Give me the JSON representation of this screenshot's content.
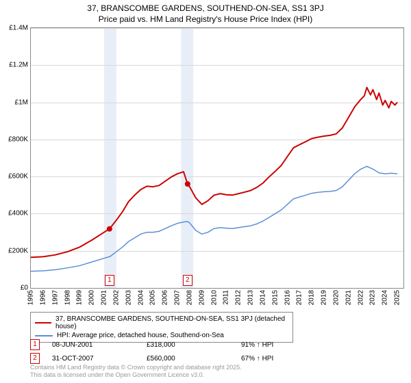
{
  "title_line1": "37, BRANSCOMBE GARDENS, SOUTHEND-ON-SEA, SS1 3PJ",
  "title_line2": "Price paid vs. HM Land Registry's House Price Index (HPI)",
  "colors": {
    "series_property": "#cc0000",
    "series_hpi": "#5b8fd6",
    "band": "#e8eef7",
    "grid": "#d8d8d8",
    "border": "#888888",
    "text": "#000000",
    "footer": "#999999"
  },
  "y_axis": {
    "min": 0,
    "max": 1400000,
    "step": 200000,
    "labels": [
      "£0",
      "£200K",
      "£400K",
      "£600K",
      "£800K",
      "£1M",
      "£1.2M",
      "£1.4M"
    ]
  },
  "x_axis": {
    "min": 1995,
    "max": 2025.5,
    "labels": [
      1995,
      1996,
      1997,
      1998,
      1999,
      2000,
      2001,
      2002,
      2003,
      2004,
      2005,
      2006,
      2007,
      2008,
      2009,
      2010,
      2011,
      2012,
      2013,
      2014,
      2015,
      2016,
      2017,
      2018,
      2019,
      2020,
      2021,
      2022,
      2023,
      2024,
      2025
    ]
  },
  "bands": [
    {
      "start": 2001.0,
      "end": 2002.0
    },
    {
      "start": 2007.3,
      "end": 2008.3
    }
  ],
  "series": {
    "hpi": {
      "label": "HPI: Average price, detached house, Southend-on-Sea",
      "line_width": 1.5,
      "points": [
        [
          1995.0,
          90000
        ],
        [
          1996.0,
          92000
        ],
        [
          1997.0,
          98000
        ],
        [
          1998.0,
          108000
        ],
        [
          1999.0,
          120000
        ],
        [
          2000.0,
          140000
        ],
        [
          2001.0,
          160000
        ],
        [
          2001.5,
          170000
        ],
        [
          2002.0,
          195000
        ],
        [
          2002.5,
          220000
        ],
        [
          2003.0,
          250000
        ],
        [
          2003.5,
          270000
        ],
        [
          2004.0,
          290000
        ],
        [
          2004.5,
          300000
        ],
        [
          2005.0,
          300000
        ],
        [
          2005.5,
          305000
        ],
        [
          2006.0,
          320000
        ],
        [
          2006.5,
          335000
        ],
        [
          2007.0,
          348000
        ],
        [
          2007.5,
          355000
        ],
        [
          2007.83,
          358000
        ],
        [
          2008.0,
          350000
        ],
        [
          2008.5,
          310000
        ],
        [
          2009.0,
          290000
        ],
        [
          2009.5,
          300000
        ],
        [
          2010.0,
          320000
        ],
        [
          2010.5,
          325000
        ],
        [
          2011.0,
          322000
        ],
        [
          2011.5,
          320000
        ],
        [
          2012.0,
          325000
        ],
        [
          2012.5,
          330000
        ],
        [
          2013.0,
          335000
        ],
        [
          2013.5,
          345000
        ],
        [
          2014.0,
          360000
        ],
        [
          2014.5,
          380000
        ],
        [
          2015.0,
          400000
        ],
        [
          2015.5,
          420000
        ],
        [
          2016.0,
          450000
        ],
        [
          2016.5,
          480000
        ],
        [
          2017.0,
          490000
        ],
        [
          2017.5,
          500000
        ],
        [
          2018.0,
          510000
        ],
        [
          2018.5,
          515000
        ],
        [
          2019.0,
          518000
        ],
        [
          2019.5,
          520000
        ],
        [
          2020.0,
          525000
        ],
        [
          2020.5,
          545000
        ],
        [
          2021.0,
          580000
        ],
        [
          2021.5,
          615000
        ],
        [
          2022.0,
          640000
        ],
        [
          2022.5,
          655000
        ],
        [
          2023.0,
          640000
        ],
        [
          2023.5,
          620000
        ],
        [
          2024.0,
          615000
        ],
        [
          2024.5,
          618000
        ],
        [
          2025.0,
          615000
        ]
      ]
    },
    "property": {
      "label": "37, BRANSCOMBE GARDENS, SOUTHEND-ON-SEA, SS1 3PJ (detached house)",
      "line_width": 2,
      "points": [
        [
          1995.0,
          165000
        ],
        [
          1996.0,
          168000
        ],
        [
          1997.0,
          178000
        ],
        [
          1998.0,
          195000
        ],
        [
          1999.0,
          220000
        ],
        [
          2000.0,
          258000
        ],
        [
          2001.0,
          300000
        ],
        [
          2001.44,
          318000
        ],
        [
          2002.0,
          365000
        ],
        [
          2002.5,
          410000
        ],
        [
          2003.0,
          465000
        ],
        [
          2003.5,
          500000
        ],
        [
          2004.0,
          530000
        ],
        [
          2004.5,
          548000
        ],
        [
          2005.0,
          545000
        ],
        [
          2005.5,
          552000
        ],
        [
          2006.0,
          575000
        ],
        [
          2006.5,
          598000
        ],
        [
          2007.0,
          615000
        ],
        [
          2007.5,
          626000
        ],
        [
          2007.83,
          560000
        ],
        [
          2008.0,
          545000
        ],
        [
          2008.5,
          485000
        ],
        [
          2009.0,
          450000
        ],
        [
          2009.5,
          470000
        ],
        [
          2010.0,
          500000
        ],
        [
          2010.5,
          508000
        ],
        [
          2011.0,
          502000
        ],
        [
          2011.5,
          500000
        ],
        [
          2012.0,
          508000
        ],
        [
          2012.5,
          516000
        ],
        [
          2013.0,
          525000
        ],
        [
          2013.5,
          542000
        ],
        [
          2014.0,
          565000
        ],
        [
          2014.5,
          598000
        ],
        [
          2015.0,
          628000
        ],
        [
          2015.5,
          660000
        ],
        [
          2016.0,
          708000
        ],
        [
          2016.5,
          755000
        ],
        [
          2017.0,
          772000
        ],
        [
          2017.5,
          788000
        ],
        [
          2018.0,
          805000
        ],
        [
          2018.5,
          812000
        ],
        [
          2019.0,
          818000
        ],
        [
          2019.5,
          822000
        ],
        [
          2020.0,
          830000
        ],
        [
          2020.5,
          862000
        ],
        [
          2021.0,
          918000
        ],
        [
          2021.5,
          975000
        ],
        [
          2022.0,
          1015000
        ],
        [
          2022.3,
          1035000
        ],
        [
          2022.5,
          1080000
        ],
        [
          2022.8,
          1040000
        ],
        [
          2023.0,
          1068000
        ],
        [
          2023.3,
          1015000
        ],
        [
          2023.5,
          1050000
        ],
        [
          2023.8,
          985000
        ],
        [
          2024.0,
          1010000
        ],
        [
          2024.3,
          970000
        ],
        [
          2024.5,
          1005000
        ],
        [
          2024.8,
          985000
        ],
        [
          2025.0,
          1000000
        ]
      ]
    }
  },
  "sale_markers": [
    {
      "index": "1",
      "year": 2001.44,
      "value": 318000,
      "box_y": 70000
    },
    {
      "index": "2",
      "year": 2007.83,
      "value": 560000,
      "box_y": 70000
    }
  ],
  "sale_dots": [
    {
      "year": 2001.44,
      "value": 318000
    },
    {
      "year": 2007.83,
      "value": 560000
    }
  ],
  "sales": [
    {
      "index": "1",
      "date": "08-JUN-2001",
      "price": "£318,000",
      "vs_hpi": "91% ↑ HPI"
    },
    {
      "index": "2",
      "date": "31-OCT-2007",
      "price": "£560,000",
      "vs_hpi": "67% ↑ HPI"
    }
  ],
  "footer_line1": "Contains HM Land Registry data © Crown copyright and database right 2025.",
  "footer_line2": "This data is licensed under the Open Government Licence v3.0."
}
